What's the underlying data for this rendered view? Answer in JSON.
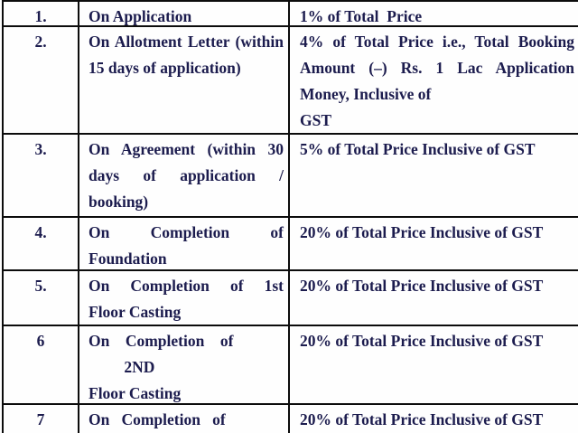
{
  "document": {
    "type": "payment-schedule-table",
    "columns": [
      "serial",
      "milestone",
      "payment"
    ]
  },
  "colors": {
    "text": "#1c1c4e",
    "border": "#0c0c0c",
    "background": "#fefefe"
  },
  "table": {
    "rows": [
      {
        "num": "1.",
        "height": 28,
        "milestone": [
          {
            "text": "On Application",
            "justify": false
          }
        ],
        "payment": [
          {
            "text": "1% of Total  Price",
            "justify": false
          }
        ]
      },
      {
        "num": "2.",
        "height": 119,
        "milestone": [
          {
            "text": "On Allotment Letter (within",
            "justify": true
          },
          {
            "text": "15 days of application)",
            "justify": false
          }
        ],
        "payment": [
          {
            "text": "4% of Total Price i.e., Total Booking",
            "justify": true
          },
          {
            "text": "Amount (–) Rs. 1 Lac Application",
            "justify": true
          },
          {
            "text": "Money, Inclusive of",
            "justify": false
          },
          {
            "text": "GST",
            "justify": false
          }
        ]
      },
      {
        "num": "3.",
        "height": 92,
        "milestone": [
          {
            "text": "On Agreement (within 30",
            "justify": true
          },
          {
            "text": "days of application /",
            "justify": true
          },
          {
            "text": "booking)",
            "justify": false
          }
        ],
        "payment": [
          {
            "text": "5% of Total Price Inclusive of GST",
            "justify": false
          }
        ]
      },
      {
        "num": "4.",
        "height": 59,
        "milestone": [
          {
            "text": "On Completion of",
            "justify": true
          },
          {
            "text": "Foundation",
            "justify": false
          }
        ],
        "payment": [
          {
            "text": "20% of Total Price Inclusive of GST",
            "justify": false
          }
        ]
      },
      {
        "num": "5.",
        "height": 61,
        "milestone": [
          {
            "text": "On Completion of 1st",
            "justify": true
          },
          {
            "text": "Floor Casting",
            "justify": false
          }
        ],
        "payment": [
          {
            "text": "20% of Total Price Inclusive of GST",
            "justify": false
          }
        ]
      },
      {
        "num": "6",
        "height": 87,
        "milestone": [
          {
            "text": "On    Completion    of",
            "justify": false
          },
          {
            "text": "         2ND",
            "justify": false
          },
          {
            "text": "Floor Casting",
            "justify": false
          }
        ],
        "payment": [
          {
            "text": "20% of Total Price Inclusive of GST",
            "justify": false
          }
        ]
      },
      {
        "num": "7",
        "height": 31,
        "milestone": [
          {
            "text": "On   Completion   of",
            "justify": false
          }
        ],
        "payment": [
          {
            "text": "20% of Total Price Inclusive of GST",
            "justify": false
          }
        ]
      }
    ]
  }
}
